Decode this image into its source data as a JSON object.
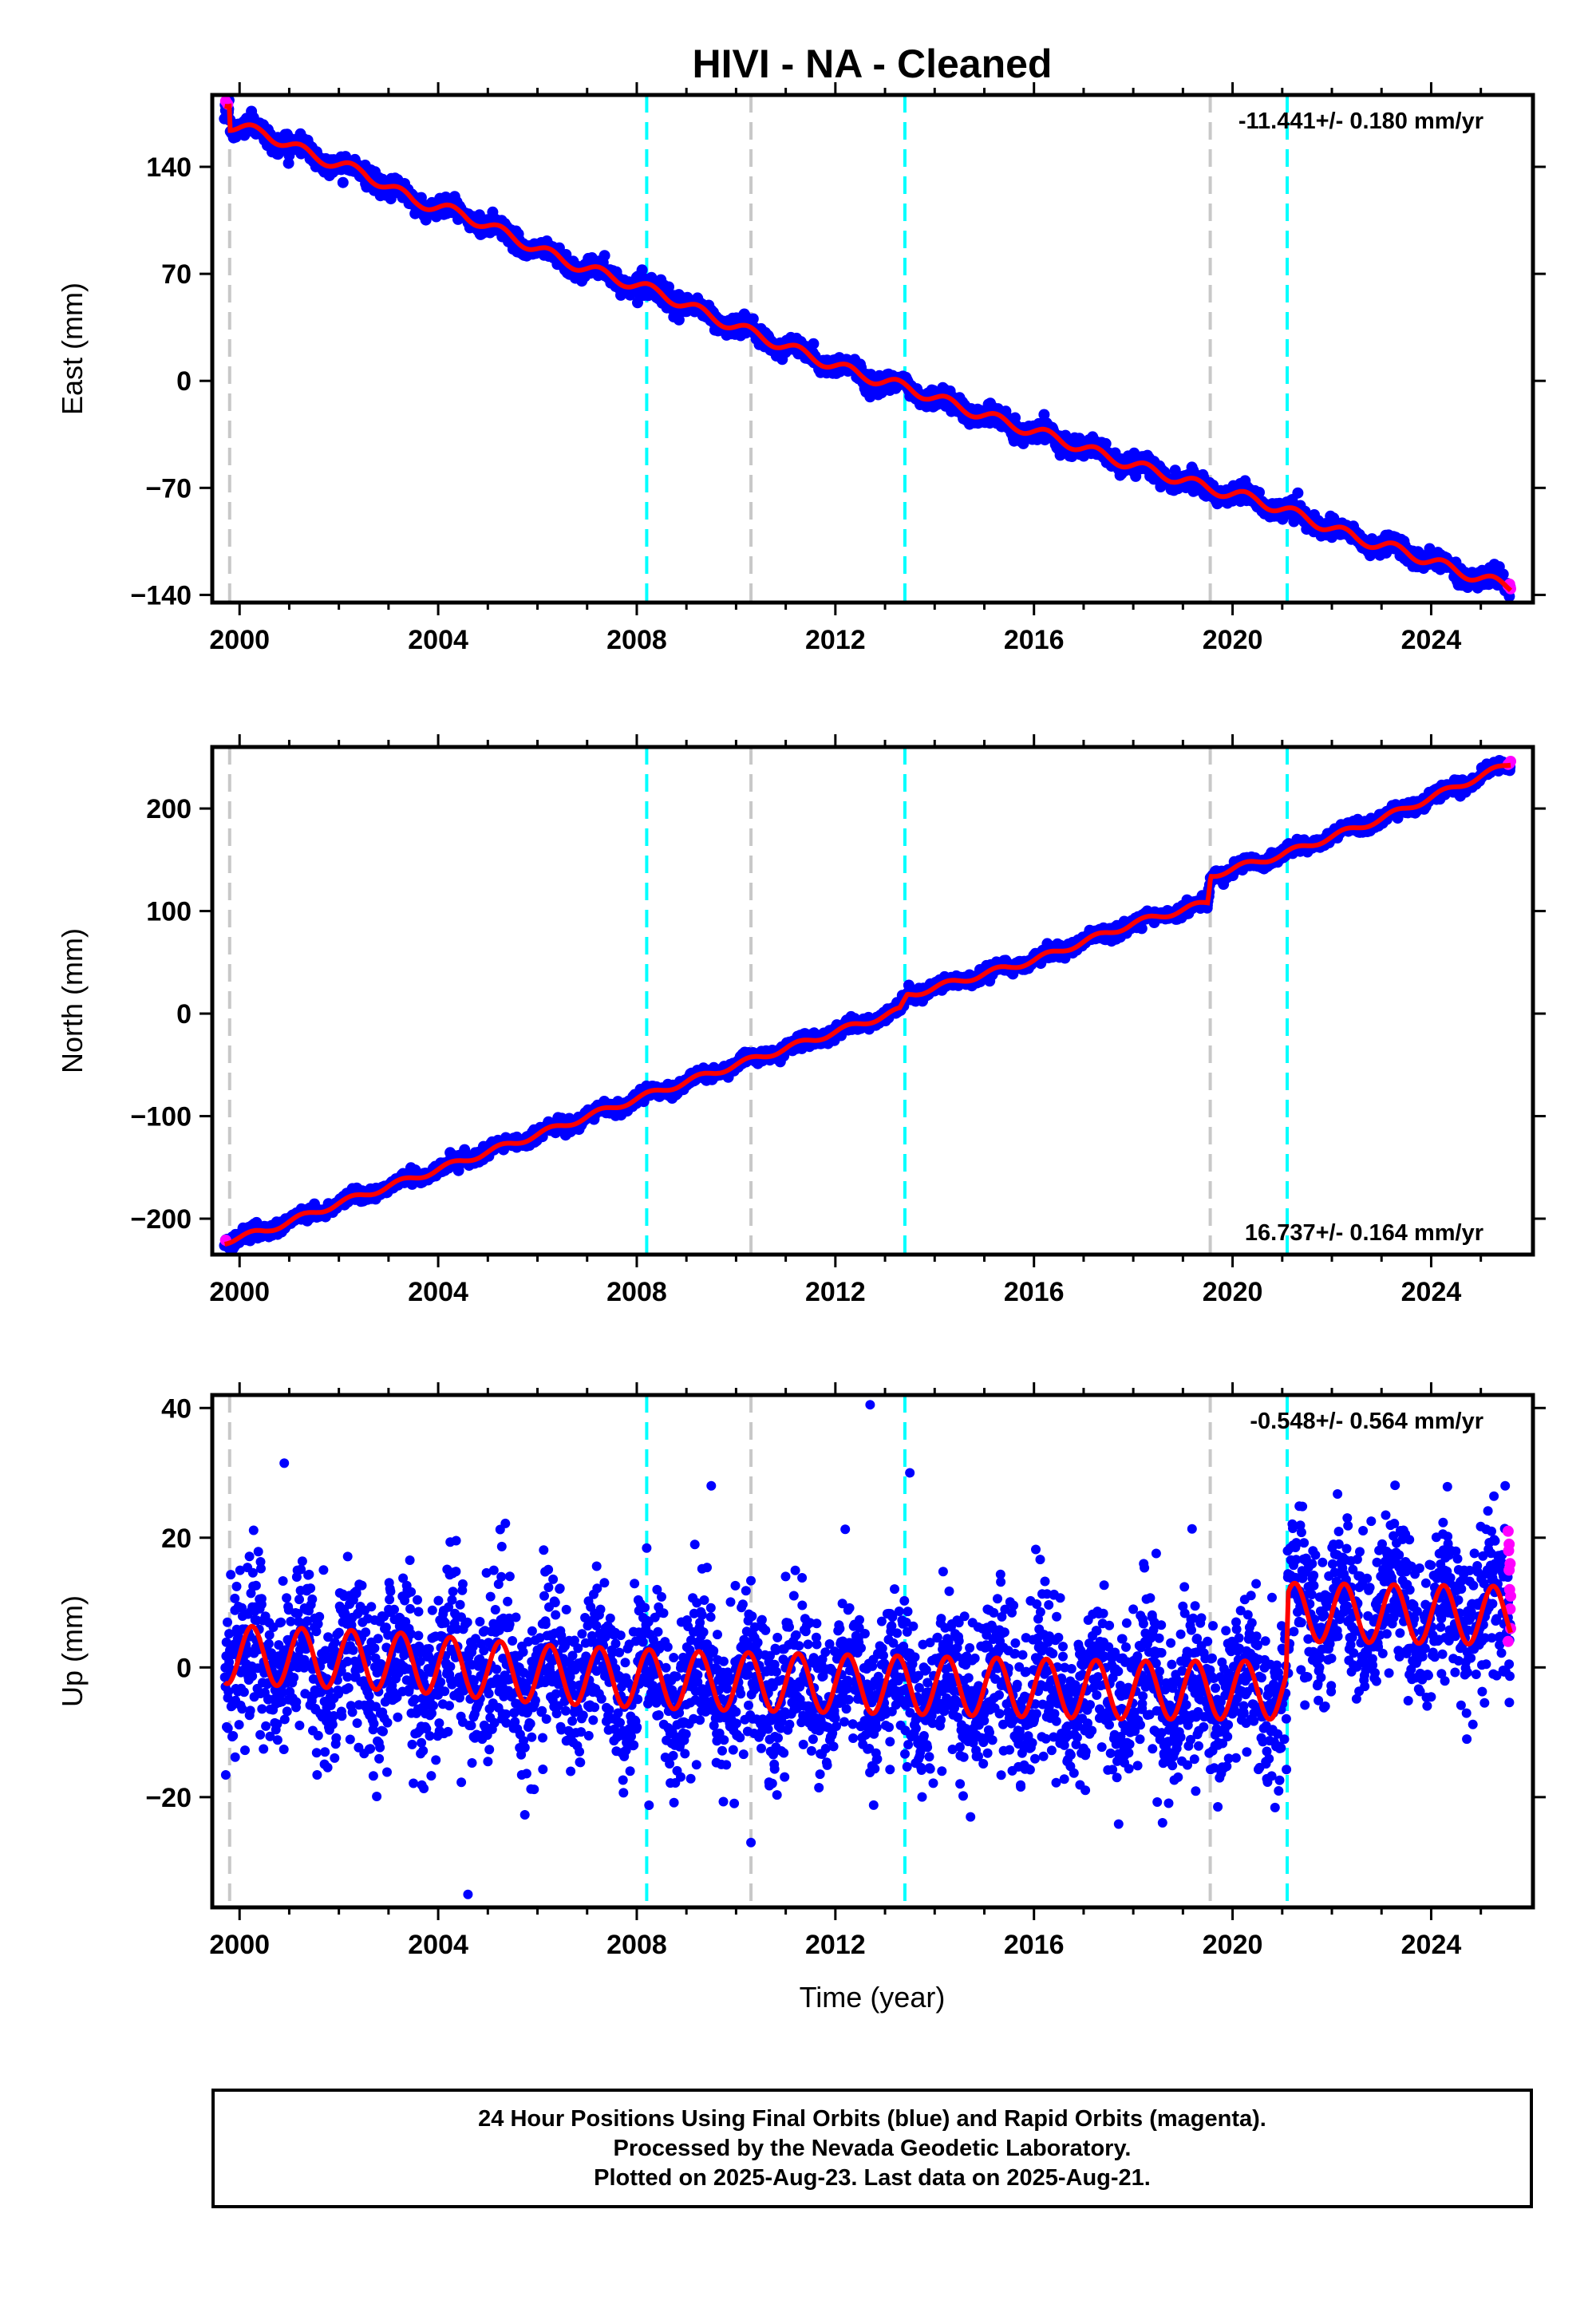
{
  "title": "HIVI  - NA - Cleaned",
  "xlabel": "Time (year)",
  "caption": [
    "24 Hour Positions Using Final Orbits (blue) and Rapid Orbits (magenta).",
    "Processed by the Nevada Geodetic Laboratory.",
    "Plotted on 2025-Aug-23. Last data on 2025-Aug-21."
  ],
  "colors": {
    "final_orbits": "#0000ff",
    "rapid_orbits": "#ff00ff",
    "model": "#ff0000",
    "gray_dashed": "#c8c8c8",
    "cyan_dashed": "#00ffff"
  },
  "chart_data": [
    {
      "type": "scatter",
      "ylabel": "East (mm)",
      "rate_label": "-11.441+/- 0.180 mm/yr",
      "rate_position": "top-right",
      "xlim": [
        1999.45,
        2026.05
      ],
      "ylim": [
        -145,
        187
      ],
      "xticks": [
        2000,
        2004,
        2008,
        2012,
        2016,
        2020,
        2024
      ],
      "xtick_labels": [
        "2000",
        "2004",
        "2008",
        "2012",
        "2016",
        "2020",
        "2024"
      ],
      "yticks": [
        -140,
        -70,
        0,
        70,
        140
      ],
      "ytick_labels": [
        "−140",
        "−70",
        "0",
        "70",
        "140"
      ],
      "gray_lines": [
        1999.8,
        2010.3,
        2019.55
      ],
      "cyan_lines": [
        2008.2,
        2013.4,
        2021.1
      ],
      "data_start": 1999.7,
      "data_end": 2025.6,
      "model_knots": [
        [
          1999.7,
          183
        ],
        [
          1999.8,
          183
        ],
        [
          1999.81,
          167
        ],
        [
          2000.5,
          162
        ],
        [
          2001.5,
          147
        ],
        [
          2002.5,
          136
        ],
        [
          2003.5,
          118
        ],
        [
          2004.5,
          109
        ],
        [
          2005.5,
          94
        ],
        [
          2006.5,
          79
        ],
        [
          2007.5,
          68
        ],
        [
          2008.5,
          57
        ],
        [
          2009.5,
          42
        ],
        [
          2010.5,
          29
        ],
        [
          2011.5,
          16
        ],
        [
          2012.5,
          4
        ],
        [
          2013.5,
          -5
        ],
        [
          2014.5,
          -17
        ],
        [
          2015.5,
          -28
        ],
        [
          2016.5,
          -38
        ],
        [
          2017.5,
          -50
        ],
        [
          2018.5,
          -60
        ],
        [
          2019.5,
          -70
        ],
        [
          2020.5,
          -78
        ],
        [
          2021.5,
          -90
        ],
        [
          2022.5,
          -103
        ],
        [
          2023.5,
          -112
        ],
        [
          2024.5,
          -124
        ],
        [
          2025.6,
          -135
        ]
      ],
      "seasonal_amplitude": 3.5,
      "scatter_noise": 3,
      "rapid_points": [
        [
          1999.72,
          183
        ],
        [
          1999.76,
          181
        ],
        [
          2025.55,
          -134
        ],
        [
          2025.6,
          -136
        ],
        [
          2025.58,
          -133
        ]
      ]
    },
    {
      "type": "scatter",
      "ylabel": "North (mm)",
      "rate_label": "16.737+/- 0.164 mm/yr",
      "rate_position": "bottom-right",
      "xlim": [
        1999.45,
        2026.05
      ],
      "ylim": [
        -235,
        260
      ],
      "xticks": [
        2000,
        2004,
        2008,
        2012,
        2016,
        2020,
        2024
      ],
      "xtick_labels": [
        "2000",
        "2004",
        "2008",
        "2012",
        "2016",
        "2020",
        "2024"
      ],
      "yticks": [
        -200,
        -100,
        0,
        100,
        200
      ],
      "ytick_labels": [
        "−200",
        "−100",
        "0",
        "100",
        "200"
      ],
      "gray_lines": [
        1999.8,
        2010.3,
        2019.55
      ],
      "cyan_lines": [
        2008.2,
        2013.4,
        2021.1
      ],
      "data_start": 1999.7,
      "data_end": 2025.6,
      "model_knots": [
        [
          1999.7,
          -222
        ],
        [
          2000.5,
          -212
        ],
        [
          2002.0,
          -185
        ],
        [
          2004.0,
          -152
        ],
        [
          2006.0,
          -118
        ],
        [
          2008.0,
          -83
        ],
        [
          2010.0,
          -50
        ],
        [
          2012.0,
          -18
        ],
        [
          2013.3,
          3
        ],
        [
          2013.45,
          18
        ],
        [
          2016.0,
          52
        ],
        [
          2018.0,
          88
        ],
        [
          2019.5,
          108
        ],
        [
          2019.56,
          135
        ],
        [
          2021.0,
          155
        ],
        [
          2023.0,
          190
        ],
        [
          2025.6,
          244
        ]
      ],
      "seasonal_amplitude": 3,
      "scatter_noise": 3,
      "rapid_points": [
        [
          1999.72,
          -221
        ],
        [
          2025.55,
          243
        ],
        [
          2025.6,
          246
        ],
        [
          2025.58,
          244
        ]
      ]
    },
    {
      "type": "scatter",
      "ylabel": "Up (mm)",
      "rate_label": "-0.548+/- 0.564 mm/yr",
      "rate_position": "top-right",
      "xlim": [
        1999.45,
        2026.05
      ],
      "ylim": [
        -37,
        42
      ],
      "xticks": [
        2000,
        2004,
        2008,
        2012,
        2016,
        2020,
        2024
      ],
      "xtick_labels": [
        "2000",
        "2004",
        "2008",
        "2012",
        "2016",
        "2020",
        "2024"
      ],
      "yticks": [
        -20,
        0,
        20,
        40
      ],
      "ytick_labels": [
        "−20",
        "0",
        "20",
        "40"
      ],
      "gray_lines": [
        1999.8,
        2010.3,
        2019.55
      ],
      "cyan_lines": [
        2008.2,
        2013.4,
        2021.1
      ],
      "data_start": 1999.7,
      "data_end": 2025.6,
      "model_knots": [
        [
          1999.7,
          2
        ],
        [
          2003.0,
          1
        ],
        [
          2006.0,
          -1
        ],
        [
          2009.0,
          -2
        ],
        [
          2012.0,
          -2.5
        ],
        [
          2015.0,
          -3
        ],
        [
          2018.0,
          -3.5
        ],
        [
          2021.08,
          -3.5
        ],
        [
          2021.12,
          8.5
        ],
        [
          2025.6,
          8
        ]
      ],
      "seasonal_amplitude": 4.5,
      "scatter_noise": 6,
      "rapid_points": [
        [
          2025.55,
          21
        ],
        [
          2025.56,
          18
        ],
        [
          2025.57,
          15
        ],
        [
          2025.58,
          12
        ],
        [
          2025.59,
          9
        ],
        [
          2025.6,
          6
        ],
        [
          2025.55,
          4
        ],
        [
          2025.57,
          19
        ],
        [
          2025.59,
          16
        ],
        [
          2025.6,
          11
        ]
      ],
      "outliers": [
        [
          2012.7,
          40.5
        ],
        [
          2009.5,
          28
        ],
        [
          2004.6,
          -35
        ],
        [
          2010.3,
          -27
        ],
        [
          2000.9,
          31.5
        ],
        [
          2013.5,
          30
        ]
      ]
    }
  ]
}
